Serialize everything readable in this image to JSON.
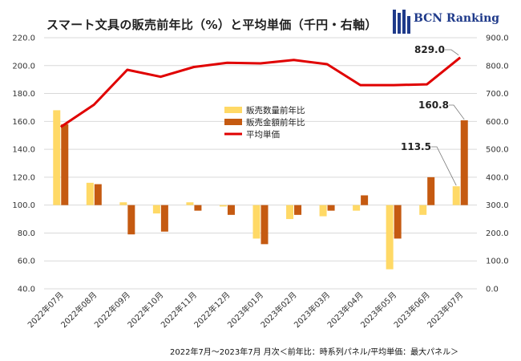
{
  "title": "スマート文具の販売前年比（%）と平均単価（千円・右軸）",
  "logo": {
    "text": "BCN Ranking",
    "icon": "bcn-logo-icon",
    "color": "#1f3a8a"
  },
  "footnote": "2022年7月～2023年7月 月次＜前年比：時系列パネル/平均単価：最大パネル＞",
  "chart_data": {
    "type": "bar",
    "categories": [
      "2022年07月",
      "2022年08月",
      "2022年09月",
      "2022年10月",
      "2022年11月",
      "2022年12月",
      "2023年01月",
      "2023年02月",
      "2023年03月",
      "2023年04月",
      "2023年05月",
      "2023年06月",
      "2023年07月"
    ],
    "series": [
      {
        "name": "販売数量前年比",
        "type": "bar",
        "axis": "left",
        "color": "#ffd966",
        "values": [
          168,
          116,
          102,
          94,
          102,
          99,
          76,
          90,
          92,
          96,
          54,
          93,
          113.5
        ]
      },
      {
        "name": "販売金額前年比",
        "type": "bar",
        "axis": "left",
        "color": "#c55a11",
        "values": [
          158,
          115,
          79,
          81,
          96,
          93,
          72,
          93,
          96,
          107,
          76,
          120,
          160.8
        ]
      },
      {
        "name": "平均単価",
        "type": "line",
        "axis": "right",
        "color": "#e00000",
        "values": [
          580,
          660,
          785,
          760,
          795,
          810,
          808,
          820,
          805,
          730,
          730,
          733,
          829
        ]
      }
    ],
    "left_axis": {
      "min": 40,
      "max": 220,
      "step": 20,
      "ticks": [
        "40.0",
        "60.0",
        "80.0",
        "100.0",
        "120.0",
        "140.0",
        "160.0",
        "180.0",
        "200.0",
        "220.0"
      ]
    },
    "right_axis": {
      "min": 0,
      "max": 900,
      "step": 100,
      "ticks": [
        "0.0",
        "100.0",
        "200.0",
        "300.0",
        "400.0",
        "500.0",
        "600.0",
        "700.0",
        "800.0",
        "900.0"
      ]
    },
    "baseline": 100,
    "grid": true,
    "legend_position": "center",
    "annotations": [
      {
        "text": "829.0",
        "series": 2,
        "index": 12
      },
      {
        "text": "160.8",
        "series": 1,
        "index": 12
      },
      {
        "text": "113.5",
        "series": 0,
        "index": 12
      }
    ]
  }
}
